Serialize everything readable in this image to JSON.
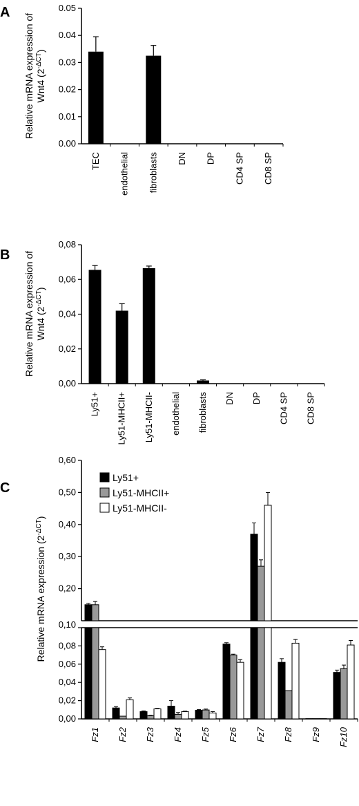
{
  "chart_data": [
    {
      "panel": "A",
      "type": "bar",
      "ylabel_line1": "Relative mRNA expression of",
      "ylabel_line2": "Wnt4 (2⁻ΔCT)",
      "ylim": [
        0,
        0.05
      ],
      "yticks": [
        "0.00",
        "0.01",
        "0.02",
        "0.03",
        "0.04",
        "0.05"
      ],
      "ytick_values": [
        0,
        0.01,
        0.02,
        0.03,
        0.04,
        0.05
      ],
      "categories": [
        "TEC",
        "endothelial",
        "fibroblasts",
        "DN",
        "DP",
        "CD4 SP",
        "CD8 SP"
      ],
      "values": [
        0.034,
        0,
        0.0325,
        0,
        0,
        0,
        0
      ],
      "errors": [
        0.0055,
        0,
        0.0038,
        0,
        0,
        0,
        0
      ],
      "bar_color": "#000000"
    },
    {
      "panel": "B",
      "type": "bar",
      "ylabel_line1": "Relative mRNA expression of",
      "ylabel_line2": "Wnt4 (2⁻ΔCT)",
      "ylim": [
        0,
        0.08
      ],
      "yticks": [
        "0,00",
        "0,02",
        "0,04",
        "0,06",
        "0,08"
      ],
      "ytick_values": [
        0,
        0.02,
        0.04,
        0.06,
        0.08
      ],
      "categories": [
        "Ly51+",
        "Ly51-MHCII+",
        "Ly51-MHCII-",
        "endothelial",
        "fibroblasts",
        "DN",
        "DP",
        "CD4 SP",
        "CD8 SP"
      ],
      "values": [
        0.0655,
        0.042,
        0.0665,
        0,
        0.0018,
        0,
        0,
        0,
        0
      ],
      "errors": [
        0.0025,
        0.004,
        0.0012,
        0,
        0.0004,
        0,
        0,
        0,
        0
      ],
      "bar_color": "#000000"
    },
    {
      "panel": "C",
      "type": "bar",
      "ylabel": "Relative mRNA expression (2⁻ΔCT)",
      "broken_axis": true,
      "lower_ylim": [
        0,
        0.1
      ],
      "lower_yticks": [
        "0,00",
        "0,02",
        "0,04",
        "0,06",
        "0,08",
        "0,10"
      ],
      "lower_ytick_values": [
        0,
        0.02,
        0.04,
        0.06,
        0.08,
        0.1
      ],
      "upper_ylim": [
        0.1,
        0.6
      ],
      "upper_yticks": [
        "0,20",
        "0,30",
        "0,40",
        "0,50",
        "0,60"
      ],
      "upper_ytick_values": [
        0.2,
        0.3,
        0.4,
        0.5,
        0.6
      ],
      "legend_position": "top-left",
      "categories": [
        "Fz1",
        "Fz2",
        "Fz3",
        "Fz4",
        "Fz5",
        "Fz6",
        "Fz7",
        "Fz8",
        "Fz9",
        "Fz10"
      ],
      "series": [
        {
          "name": "Ly51+",
          "color": "#000000",
          "values": [
            0.15,
            0.012,
            0.008,
            0.014,
            0.0095,
            0.082,
            0.37,
            0.062,
            0.0003,
            0.051
          ],
          "errors": [
            0.004,
            0.0015,
            0.0008,
            0.006,
            0.0008,
            0.0015,
            0.035,
            0.004,
            0,
            0.0025
          ]
        },
        {
          "name": "Ly51-MHCII+",
          "color": "#999999",
          "values": [
            0.15,
            0.003,
            0.0035,
            0.005,
            0.0098,
            0.07,
            0.27,
            0.031,
            0.0003,
            0.055
          ],
          "errors": [
            0.01,
            0,
            0.0005,
            0.002,
            0.001,
            0.001,
            0.02,
            0,
            0,
            0.004
          ]
        },
        {
          "name": "Ly51-MHCII-",
          "color": "#ffffff",
          "values": [
            0.076,
            0.021,
            0.011,
            0.008,
            0.0065,
            0.062,
            0.46,
            0.083,
            0.0003,
            0.081
          ],
          "errors": [
            0.003,
            0.002,
            0.0005,
            0.0005,
            0.0015,
            0.003,
            0.04,
            0.004,
            0,
            0.005
          ]
        }
      ]
    }
  ]
}
